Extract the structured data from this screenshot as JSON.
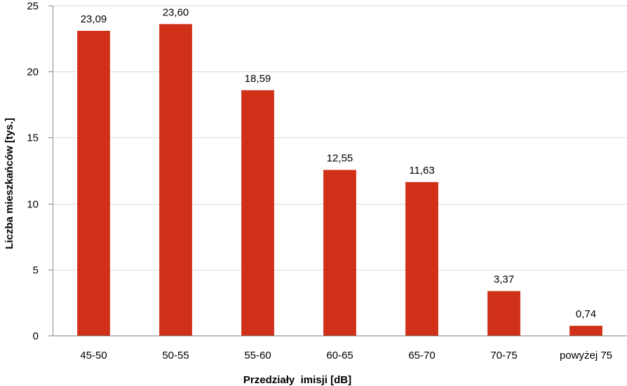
{
  "chart_data": {
    "type": "bar",
    "categories": [
      "45-50",
      "50-55",
      "55-60",
      "60-65",
      "65-70",
      "70-75",
      "powyżej 75"
    ],
    "values": [
      23.09,
      23.6,
      18.59,
      12.55,
      11.63,
      3.37,
      0.74
    ],
    "data_labels": [
      "23,09",
      "23,60",
      "18,59",
      "12,55",
      "11,63",
      "3,37",
      "0,74"
    ],
    "xlabel": "Przedziały  imisji [dB]",
    "ylabel": "Liczba mieszkańców [tys.]",
    "ylim": [
      0,
      25
    ],
    "yticks": [
      0,
      5,
      10,
      15,
      20,
      25
    ],
    "ytick_labels": [
      "0",
      "5",
      "10",
      "15",
      "20",
      "25"
    ],
    "grid": true,
    "legend": "none",
    "bar_color": "#d03018"
  }
}
